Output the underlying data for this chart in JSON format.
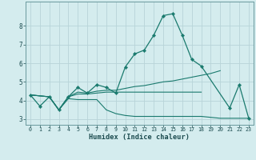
{
  "xlabel": "Humidex (Indice chaleur)",
  "bg_color": "#d4ecee",
  "line_color": "#1a7a6e",
  "grid_color": "#b8d4d8",
  "xlim": [
    -0.5,
    23.5
  ],
  "ylim": [
    2.7,
    9.3
  ],
  "yticks": [
    3,
    4,
    5,
    6,
    7,
    8
  ],
  "xticks": [
    0,
    1,
    2,
    3,
    4,
    5,
    6,
    7,
    8,
    9,
    10,
    11,
    12,
    13,
    14,
    15,
    16,
    17,
    18,
    19,
    20,
    21,
    22,
    23
  ],
  "line1_x": [
    0,
    1,
    2,
    3,
    4,
    5,
    6,
    7,
    8,
    9,
    10,
    11,
    12,
    13,
    14,
    15,
    16,
    17,
    18,
    21,
    22,
    23
  ],
  "line1_y": [
    4.3,
    3.7,
    4.2,
    3.5,
    4.2,
    4.7,
    4.4,
    4.85,
    4.7,
    4.4,
    5.8,
    6.5,
    6.7,
    7.5,
    8.55,
    8.65,
    7.5,
    6.2,
    5.85,
    3.6,
    4.85,
    3.05
  ],
  "line2_x": [
    0,
    2,
    3,
    4,
    5,
    6,
    7,
    8,
    9,
    10,
    11,
    12,
    13,
    14,
    15,
    16,
    17,
    18,
    19,
    20
  ],
  "line2_y": [
    4.3,
    4.2,
    3.5,
    4.2,
    4.45,
    4.4,
    4.5,
    4.55,
    4.55,
    4.65,
    4.75,
    4.8,
    4.9,
    5.0,
    5.05,
    5.15,
    5.25,
    5.35,
    5.45,
    5.6
  ],
  "line3_x": [
    0,
    2,
    3,
    4,
    5,
    6,
    7,
    8,
    9,
    10,
    11,
    12,
    13,
    14,
    15,
    16,
    17,
    18
  ],
  "line3_y": [
    4.3,
    4.2,
    3.5,
    4.2,
    4.35,
    4.35,
    4.4,
    4.45,
    4.45,
    4.45,
    4.45,
    4.45,
    4.45,
    4.45,
    4.45,
    4.45,
    4.45,
    4.45
  ],
  "line4_x": [
    0,
    2,
    3,
    4,
    5,
    6,
    7,
    8,
    9,
    10,
    11,
    12,
    13,
    14,
    15,
    16,
    17,
    18,
    19,
    20,
    23
  ],
  "line4_y": [
    4.3,
    4.2,
    3.5,
    4.1,
    4.05,
    4.05,
    4.05,
    3.5,
    3.3,
    3.2,
    3.15,
    3.15,
    3.15,
    3.15,
    3.15,
    3.15,
    3.15,
    3.15,
    3.1,
    3.05,
    3.05
  ]
}
